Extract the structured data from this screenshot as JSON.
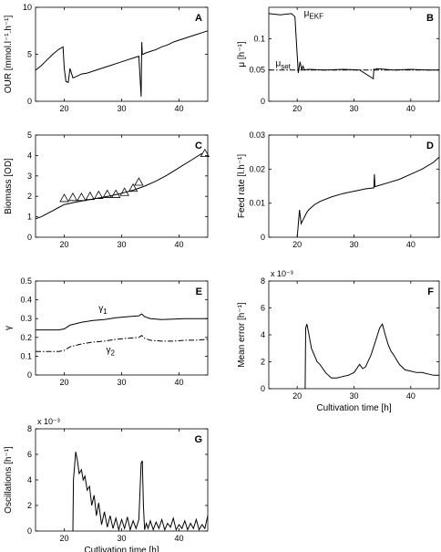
{
  "chart_data": [
    {
      "type": "line",
      "label": "A",
      "ylabel": "OUR [mmol.l⁻¹.h⁻¹]",
      "xlabel": "",
      "xlim": [
        15,
        45
      ],
      "ylim": [
        0,
        10
      ],
      "xticks": [
        20,
        30,
        40
      ],
      "yticks": [
        0,
        5,
        10
      ],
      "series": [
        {
          "name": "",
          "style": "solid",
          "x": [
            15,
            16,
            17,
            18,
            19,
            19.8,
            20,
            20.3,
            20.7,
            21,
            21.5,
            22,
            23,
            24,
            25,
            26,
            27,
            28,
            29,
            30,
            31,
            32,
            33,
            33.4,
            33.5,
            33.6,
            33.8,
            34,
            35,
            36,
            37,
            38,
            39,
            40,
            41,
            42,
            43,
            44,
            45
          ],
          "y": [
            3.3,
            3.8,
            4.4,
            5.0,
            5.5,
            5.8,
            3.5,
            2.1,
            2.0,
            3.5,
            2.5,
            2.6,
            2.9,
            3.0,
            3.2,
            3.4,
            3.6,
            3.8,
            4.0,
            4.2,
            4.4,
            4.6,
            4.8,
            0.5,
            6.3,
            5.0,
            5.0,
            5.1,
            5.3,
            5.5,
            5.8,
            6.0,
            6.3,
            6.5,
            6.7,
            6.9,
            7.1,
            7.3,
            7.5
          ]
        }
      ]
    },
    {
      "type": "line",
      "label": "B",
      "ylabel": "μ [h⁻¹]",
      "xlabel": "",
      "xlim": [
        15,
        45
      ],
      "ylim": [
        0,
        0.15
      ],
      "xticks": [
        20,
        30,
        40
      ],
      "yticks": [
        0,
        0.05,
        0.1
      ],
      "series": [
        {
          "name": "μEKF",
          "style": "solid",
          "x": [
            15,
            17,
            19,
            19.6,
            19.9,
            20.2,
            20.5,
            20.8,
            21,
            21.3,
            22,
            25,
            28,
            31,
            33.4,
            33.5,
            33.6,
            34,
            37,
            40,
            43,
            45
          ],
          "y": [
            0.14,
            0.138,
            0.14,
            0.135,
            0.09,
            0.045,
            0.063,
            0.05,
            0.056,
            0.05,
            0.051,
            0.05,
            0.051,
            0.05,
            0.036,
            0.052,
            0.05,
            0.052,
            0.05,
            0.051,
            0.05,
            0.05
          ]
        },
        {
          "name": "μset",
          "style": "dashdot",
          "x": [
            15,
            45
          ],
          "y": [
            0.05,
            0.05
          ]
        }
      ]
    },
    {
      "type": "line",
      "label": "C",
      "ylabel": "Biomass [OD]",
      "xlabel": "",
      "xlim": [
        15,
        45
      ],
      "ylim": [
        0,
        5
      ],
      "xticks": [
        20,
        30,
        40
      ],
      "yticks": [
        0,
        1,
        2,
        3,
        4,
        5
      ],
      "series": [
        {
          "name": "",
          "style": "solid",
          "x": [
            15,
            16,
            17,
            18,
            19,
            20,
            22,
            24,
            26,
            28,
            30,
            32,
            34,
            36,
            38,
            40,
            42,
            44
          ],
          "y": [
            0.9,
            1.0,
            1.15,
            1.3,
            1.45,
            1.6,
            1.72,
            1.82,
            1.92,
            2.02,
            2.15,
            2.3,
            2.5,
            2.75,
            3.05,
            3.4,
            3.75,
            4.1
          ]
        },
        {
          "name": "",
          "style": "markers",
          "x": [
            20,
            21.5,
            23,
            24.5,
            26,
            27.5,
            29,
            30.5,
            32,
            33,
            44.5
          ],
          "y": [
            1.9,
            1.95,
            1.95,
            2.0,
            2.05,
            2.1,
            2.1,
            2.2,
            2.4,
            2.7,
            4.1
          ]
        }
      ]
    },
    {
      "type": "line",
      "label": "D",
      "ylabel": "Feed rate [l.h⁻¹]",
      "xlabel": "",
      "xlim": [
        15,
        45
      ],
      "ylim": [
        0,
        0.03
      ],
      "xticks": [
        20,
        30,
        40
      ],
      "yticks": [
        0,
        0.01,
        0.02,
        0.03
      ],
      "series": [
        {
          "name": "",
          "style": "solid",
          "x": [
            20,
            20.1,
            20.4,
            20.7,
            21,
            21.3,
            21.6,
            22,
            23,
            24,
            26,
            28,
            30,
            32,
            33.5,
            33.6,
            33.7,
            34,
            36,
            38,
            40,
            42,
            44,
            45
          ],
          "y": [
            0,
            0.002,
            0.008,
            0.004,
            0.005,
            0.006,
            0.007,
            0.008,
            0.0095,
            0.0105,
            0.0118,
            0.0128,
            0.0135,
            0.0142,
            0.0145,
            0.0185,
            0.0148,
            0.015,
            0.016,
            0.017,
            0.0185,
            0.02,
            0.022,
            0.0235
          ]
        }
      ]
    },
    {
      "type": "line",
      "label": "E",
      "ylabel": "γ",
      "xlabel": "",
      "xlim": [
        15,
        45
      ],
      "ylim": [
        0,
        0.5
      ],
      "xticks": [
        20,
        30,
        40
      ],
      "yticks": [
        0,
        0.1,
        0.2,
        0.3,
        0.4,
        0.5
      ],
      "series": [
        {
          "name": "γ1",
          "style": "solid",
          "x": [
            15,
            17,
            19,
            20,
            21,
            23,
            25,
            27,
            29,
            31,
            33,
            33.5,
            34,
            35,
            37,
            39,
            41,
            43,
            45
          ],
          "y": [
            0.24,
            0.24,
            0.24,
            0.245,
            0.265,
            0.28,
            0.29,
            0.295,
            0.305,
            0.31,
            0.315,
            0.325,
            0.31,
            0.3,
            0.295,
            0.297,
            0.3,
            0.3,
            0.3
          ]
        },
        {
          "name": "γ2",
          "style": "dashdot",
          "x": [
            15,
            17,
            19,
            20,
            21,
            23,
            25,
            27,
            29,
            31,
            33,
            33.5,
            34,
            35,
            37,
            39,
            41,
            43,
            45
          ],
          "y": [
            0.125,
            0.125,
            0.125,
            0.13,
            0.15,
            0.165,
            0.175,
            0.18,
            0.19,
            0.195,
            0.2,
            0.21,
            0.195,
            0.185,
            0.18,
            0.18,
            0.185,
            0.185,
            0.19
          ]
        }
      ]
    },
    {
      "type": "line",
      "label": "F",
      "ylabel": "Mean error [h⁻¹]",
      "xlabel": "Cultivation time [h]",
      "scale_note": "x 10⁻³",
      "xlim": [
        15,
        45
      ],
      "ylim": [
        0,
        0.008
      ],
      "xticks": [
        20,
        30,
        40
      ],
      "yticks": [
        0,
        0.002,
        0.004,
        0.006,
        0.008
      ],
      "ytick_labels": [
        "0",
        "2",
        "4",
        "6",
        "8"
      ],
      "series": [
        {
          "name": "",
          "style": "solid",
          "x": [
            21.4,
            21.5,
            21.7,
            22,
            22.5,
            23,
            23.5,
            24,
            24.5,
            25,
            25.5,
            26,
            27,
            28,
            29,
            30,
            31,
            31.5,
            32,
            33,
            34,
            34.5,
            35,
            35.5,
            36,
            36.5,
            37,
            38,
            39,
            40,
            41,
            42,
            43,
            44,
            45
          ],
          "y": [
            0,
            0.0045,
            0.0048,
            0.0042,
            0.003,
            0.0025,
            0.002,
            0.0018,
            0.0015,
            0.0012,
            0.001,
            0.0008,
            0.0008,
            0.0009,
            0.001,
            0.0012,
            0.0018,
            0.0015,
            0.0016,
            0.0025,
            0.0038,
            0.0045,
            0.0048,
            0.004,
            0.0033,
            0.0028,
            0.0025,
            0.0018,
            0.0014,
            0.0013,
            0.0012,
            0.0012,
            0.0011,
            0.001,
            0.001
          ]
        }
      ]
    },
    {
      "type": "line",
      "label": "G",
      "ylabel": "Oscillations [h⁻¹]",
      "xlabel": "Cutlivation time [h]",
      "scale_note": "x 10⁻³",
      "xlim": [
        15,
        45
      ],
      "ylim": [
        0,
        0.008
      ],
      "xticks": [
        20,
        30,
        40
      ],
      "yticks": [
        0,
        0.002,
        0.004,
        0.006,
        0.008
      ],
      "ytick_labels": [
        "0",
        "2",
        "4",
        "6",
        "8"
      ],
      "series": [
        {
          "name": "",
          "style": "solid",
          "x": [
            21.5,
            21.6,
            22,
            22.3,
            22.6,
            23,
            23.3,
            23.6,
            24,
            24.4,
            24.8,
            25.2,
            25.6,
            26,
            26.5,
            27,
            27.5,
            28,
            28.5,
            29,
            29.5,
            30,
            30.5,
            31,
            31.5,
            32,
            32.5,
            33,
            33.4,
            33.6,
            33.8,
            34,
            34.3,
            34.6,
            35,
            35.5,
            36,
            36.5,
            37,
            37.5,
            38,
            38.5,
            39,
            39.5,
            40,
            40.5,
            41,
            41.5,
            42,
            42.5,
            43,
            43.5,
            44,
            44.5,
            45
          ],
          "y": [
            0,
            0.004,
            0.0062,
            0.0055,
            0.0045,
            0.0048,
            0.004,
            0.0043,
            0.0032,
            0.0035,
            0.002,
            0.0028,
            0.0012,
            0.0022,
            0.0005,
            0.0015,
            0.0003,
            0.0012,
            0.0002,
            0.001,
            0.0001,
            0.0009,
            0.0002,
            0.0011,
            0.0001,
            0.0008,
            0.0002,
            0.0009,
            0.0053,
            0.0055,
            0.002,
            0.0001,
            0.0006,
            0.0002,
            0.0008,
            0.0001,
            0.0007,
            0.0002,
            0.0009,
            0.0001,
            0.0006,
            0.0003,
            0.001,
            0.0001,
            0.0005,
            0.0002,
            0.0008,
            0.0001,
            0.0006,
            0.0002,
            0.0009,
            0.0001,
            0.0005,
            0.0002,
            0.0012
          ]
        }
      ]
    }
  ]
}
